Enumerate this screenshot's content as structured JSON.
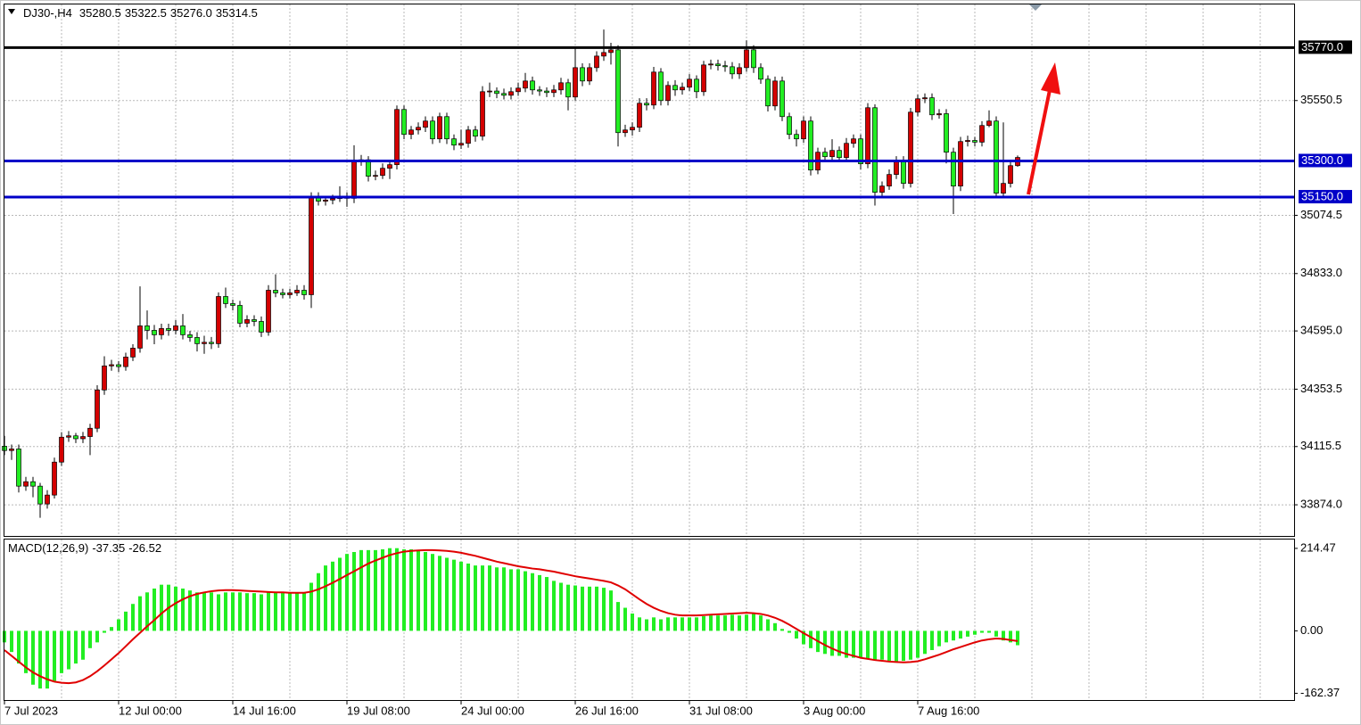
{
  "chart_data": [
    {
      "type": "candlestick",
      "header": {
        "symbol": "DJ30-,H4",
        "values": [
          "35280.5",
          "35322.5",
          "35276.0",
          "35314.5"
        ]
      },
      "categories": [
        "7 Jul 2023",
        null,
        null,
        null,
        null,
        null,
        null,
        null,
        null,
        null,
        null,
        null,
        null,
        null,
        null,
        null,
        "12 Jul 00:00",
        null,
        null,
        null,
        null,
        null,
        null,
        null,
        null,
        null,
        null,
        null,
        null,
        null,
        null,
        null,
        "14 Jul 16:00",
        null,
        null,
        null,
        null,
        null,
        null,
        null,
        null,
        null,
        null,
        null,
        null,
        null,
        null,
        null,
        "19 Jul 08:00",
        null,
        null,
        null,
        null,
        null,
        null,
        null,
        null,
        null,
        null,
        null,
        null,
        null,
        null,
        null,
        "24 Jul 00:00",
        null,
        null,
        null,
        null,
        null,
        null,
        null,
        null,
        null,
        null,
        null,
        null,
        null,
        null,
        null,
        "26 Jul 16:00",
        null,
        null,
        null,
        null,
        null,
        null,
        null,
        null,
        null,
        null,
        null,
        null,
        null,
        null,
        null,
        "31 Jul 08:00",
        null,
        null,
        null,
        null,
        null,
        null,
        null,
        null,
        null,
        null,
        null,
        null,
        null,
        null,
        null,
        "3 Aug 00:00",
        null,
        null,
        null,
        null,
        null,
        null,
        null,
        null,
        null,
        null,
        null,
        null,
        null,
        null,
        null,
        "7 Aug 16:00",
        null,
        null,
        null,
        null,
        null,
        null,
        null,
        null,
        null,
        null,
        null,
        null,
        null,
        null
      ],
      "open": [
        34117.0,
        34099.0,
        34105.5,
        33951.3,
        33969.8,
        33951.3,
        33877.5,
        33914.4,
        34051.0,
        34154.4,
        34160.0,
        34148.0,
        34157.0,
        34191.4,
        34350.2,
        34450.0,
        34455.0,
        34447.0,
        34486.8,
        34523.7,
        34616.1,
        34597.6,
        34579.1,
        34605.0,
        34597.6,
        34616.1,
        34579.1,
        34568.0,
        34542.2,
        34548.0,
        34542.2,
        34737.9,
        34708.4,
        34701.0,
        34627.1,
        34641.9,
        34634.5,
        34590.2,
        34763.8,
        34752.7,
        34745.3,
        34752.7,
        34763.8,
        34745.3,
        35151.5,
        35133.1,
        35138.0,
        35144.2,
        35151.5,
        35145.0,
        35299.3,
        35305.0,
        35236.5,
        35240.0,
        35269.7,
        35284.5,
        35513.5,
        35410.1,
        35428.5,
        35439.6,
        35465.5,
        35391.6,
        35483.9,
        35391.6,
        35365.7,
        35373.1,
        35428.5,
        35402.7,
        35587.3,
        35590.0,
        35579.9,
        35572.5,
        35587.3,
        35602.1,
        35631.6,
        35594.7,
        35590.0,
        35583.6,
        35594.7,
        35624.2,
        35565.2,
        35687.0,
        35631.6,
        35687.0,
        35735.0,
        35749.8,
        35760.9,
        35417.4,
        35428.5,
        35439.6,
        35539.3,
        35531.9,
        35668.6,
        35550.4,
        35613.2,
        35594.7,
        35605.8,
        35639.0,
        35587.3,
        35698.1,
        35702.0,
        35695.0,
        35690.7,
        35661.2,
        35687.0,
        35760.9,
        35687.0,
        35639.0,
        35528.2,
        35631.6,
        35483.9,
        35410.1,
        35391.6,
        35465.5,
        35262.3,
        35336.2,
        35317.7,
        35343.6,
        35314.0,
        35373.1,
        35391.6,
        35288.2,
        35520.8,
        35170.0,
        35195.9,
        35243.9,
        35299.3,
        35206.9,
        35502.4,
        35557.8,
        35562.0,
        35491.3,
        35496.0,
        35336.2,
        35195.9,
        35380.5,
        35385.0,
        35378.0,
        35447.0,
        35465.5,
        35166.3,
        35206.9,
        35280.5
      ],
      "high": [
        34160,
        34124,
        34124,
        33990,
        33990,
        33965,
        33935,
        34070,
        34175,
        34180,
        34172,
        34176,
        34210,
        34370,
        34490,
        34475,
        34470,
        34505,
        34540,
        34780,
        34680,
        34620,
        34625,
        34625,
        34640,
        34665,
        34595,
        34590,
        34575,
        34570,
        34755,
        34775,
        34725,
        34720,
        34660,
        34660,
        34655,
        34785,
        34830,
        34770,
        34770,
        34785,
        34785,
        35170,
        35170,
        35155,
        35160,
        35195,
        35170,
        35365,
        35325,
        35320,
        35260,
        35290,
        35300,
        35530,
        35530,
        35445,
        35460,
        35485,
        35485,
        35500,
        35500,
        35410,
        35430,
        35445,
        35445,
        35610,
        35625,
        35605,
        35600,
        35605,
        35625,
        35665,
        35650,
        35610,
        35605,
        35615,
        35645,
        35640,
        35775,
        35705,
        35705,
        35755,
        35845,
        35790,
        35780,
        35450,
        35460,
        35560,
        35560,
        35690,
        35685,
        35630,
        35635,
        35625,
        35660,
        35655,
        35715,
        35720,
        35720,
        35715,
        35710,
        35705,
        35800,
        35780,
        35705,
        35655,
        35650,
        35650,
        35500,
        35430,
        35485,
        35485,
        35355,
        35355,
        35390,
        35360,
        35395,
        35410,
        35410,
        35540,
        35535,
        35215,
        35265,
        35320,
        35320,
        35520,
        35575,
        35580,
        35580,
        35515,
        35515,
        35355,
        35400,
        35405,
        35400,
        35465,
        35510,
        35485,
        35460,
        35300,
        35322.5
      ],
      "low": [
        34080,
        34060,
        33925,
        33932,
        33905,
        33820,
        33858,
        33900,
        34035,
        34135,
        34130,
        34130,
        34080,
        34175,
        34330,
        34430,
        34425,
        34430,
        34470,
        34505,
        34560,
        34540,
        34560,
        34575,
        34580,
        34560,
        34550,
        34510,
        34500,
        34520,
        34525,
        34690,
        34680,
        34610,
        34610,
        34615,
        34570,
        34575,
        34735,
        34730,
        34730,
        34740,
        34725,
        34690,
        35115,
        35115,
        35120,
        35130,
        35110,
        35125,
        35280,
        35215,
        35220,
        35225,
        35225,
        35265,
        35390,
        35390,
        35410,
        35420,
        35370,
        35375,
        35370,
        35345,
        35350,
        35355,
        35380,
        35385,
        35565,
        35560,
        35555,
        35555,
        35570,
        35585,
        35575,
        35570,
        35565,
        35565,
        35575,
        35510,
        35550,
        35610,
        35615,
        35670,
        35715,
        35700,
        35360,
        35400,
        35405,
        35420,
        35510,
        35515,
        35530,
        35530,
        35570,
        35575,
        35590,
        35560,
        35570,
        35680,
        35675,
        35670,
        35640,
        35640,
        35670,
        35665,
        35620,
        35505,
        35510,
        35465,
        35390,
        35360,
        35375,
        35240,
        35245,
        35295,
        35300,
        35295,
        35300,
        35355,
        35265,
        35270,
        35115,
        35150,
        35180,
        35225,
        35185,
        35190,
        35485,
        35540,
        35470,
        35475,
        35290,
        35080,
        35175,
        35360,
        35360,
        35360,
        35440,
        35150,
        35150,
        35190,
        35276
      ],
      "close": [
        34099.0,
        34105.5,
        33951.3,
        33969.8,
        33951.3,
        33877.5,
        33914.4,
        34051.0,
        34154.4,
        34160.0,
        34148.0,
        34157.0,
        34191.4,
        34350.2,
        34450.0,
        34455.0,
        34447.0,
        34486.8,
        34523.7,
        34616.1,
        34597.6,
        34579.1,
        34605.0,
        34597.6,
        34616.1,
        34579.1,
        34568.0,
        34542.2,
        34548.0,
        34542.2,
        34737.9,
        34708.4,
        34701.0,
        34627.1,
        34641.9,
        34634.5,
        34590.2,
        34763.8,
        34752.7,
        34745.3,
        34752.7,
        34763.8,
        34745.3,
        35151.5,
        35133.1,
        35138.0,
        35144.2,
        35151.5,
        35145.0,
        35299.3,
        35305.0,
        35236.5,
        35240.0,
        35269.7,
        35284.5,
        35513.5,
        35410.1,
        35428.5,
        35439.6,
        35465.5,
        35391.6,
        35483.9,
        35391.6,
        35365.7,
        35373.1,
        35428.5,
        35402.7,
        35587.3,
        35590.0,
        35579.9,
        35572.5,
        35587.3,
        35602.1,
        35631.6,
        35594.7,
        35590.0,
        35583.6,
        35594.7,
        35624.2,
        35565.2,
        35687.0,
        35631.6,
        35687.0,
        35735.0,
        35749.8,
        35760.9,
        35417.4,
        35428.5,
        35439.6,
        35539.3,
        35531.9,
        35668.6,
        35550.4,
        35613.2,
        35594.7,
        35605.8,
        35639.0,
        35587.3,
        35698.1,
        35702.0,
        35695.0,
        35690.7,
        35661.2,
        35687.0,
        35760.9,
        35687.0,
        35639.0,
        35528.2,
        35631.6,
        35483.9,
        35410.1,
        35391.6,
        35465.5,
        35262.3,
        35336.2,
        35317.7,
        35343.6,
        35314.0,
        35373.1,
        35391.6,
        35288.2,
        35520.8,
        35170.0,
        35195.9,
        35243.9,
        35299.3,
        35206.9,
        35502.4,
        35557.8,
        35562.0,
        35491.3,
        35496.0,
        35336.2,
        35195.9,
        35380.5,
        35385.0,
        35378.0,
        35447.0,
        35465.5,
        35166.3,
        35206.9,
        35280.5,
        35314.5
      ],
      "up_color": "#d40000",
      "down_color": "#22ee22",
      "ylim": [
        33744.8,
        35949.0
      ],
      "yticks": [
        {
          "value": 33874.0,
          "label": "33874.0"
        },
        34115.5,
        34353.5,
        {
          "value": 34595.0,
          "label": "34595.0"
        },
        {
          "value": 34833.0,
          "label": "34833.0"
        },
        35074.5,
        35550.5
      ],
      "grid": true,
      "hlines": [
        {
          "value": 35770.0,
          "label": "35770.0",
          "color": "#000000"
        },
        {
          "value": 35300.0,
          "label": "35300.0",
          "color": "#0000c8"
        },
        {
          "value": 35150.0,
          "label": "35150.0",
          "color": "#0000c8"
        }
      ]
    },
    {
      "type": "macd",
      "title": "MACD(12,26,9)",
      "histogram": [
        -30,
        -55,
        -85,
        -110,
        -140,
        -150,
        -150,
        -130,
        -110,
        -100,
        -85,
        -75,
        -45,
        -30,
        -5,
        10,
        30,
        50,
        70,
        90,
        100,
        110,
        120,
        120,
        115,
        110,
        105,
        100,
        100,
        100,
        95,
        100,
        100,
        100,
        98,
        98,
        95,
        100,
        100,
        100,
        98,
        98,
        100,
        125,
        150,
        170,
        180,
        190,
        200,
        205,
        210,
        210,
        210,
        212,
        215,
        215,
        212,
        212,
        210,
        205,
        200,
        195,
        190,
        185,
        180,
        175,
        170,
        170,
        170,
        165,
        165,
        160,
        160,
        155,
        150,
        145,
        140,
        130,
        125,
        120,
        118,
        115,
        115,
        115,
        112,
        105,
        75,
        60,
        45,
        35,
        30,
        35,
        30,
        35,
        35,
        35,
        35,
        35,
        38,
        40,
        40,
        40,
        42,
        40,
        42,
        45,
        40,
        30,
        20,
        5,
        -5,
        -20,
        -35,
        -45,
        -55,
        -60,
        -65,
        -65,
        -70,
        -70,
        -70,
        -72,
        -75,
        -75,
        -78,
        -80,
        -78,
        -75,
        -70,
        -60,
        -50,
        -40,
        -30,
        -25,
        -20,
        -15,
        -10,
        -5,
        -5,
        -15,
        -25,
        -30,
        -37.35
      ],
      "signal": [
        -50,
        -65,
        -80,
        -95,
        -108,
        -118,
        -126,
        -132,
        -135,
        -136,
        -134,
        -128,
        -118,
        -105,
        -90,
        -74,
        -58,
        -40,
        -22,
        -5,
        12,
        28,
        45,
        60,
        72,
        82,
        90,
        96,
        100,
        103,
        105,
        106,
        106,
        105,
        104,
        103,
        102,
        101,
        100,
        100,
        99,
        99,
        99,
        102,
        108,
        116,
        125,
        135,
        145,
        155,
        165,
        175,
        183,
        190,
        197,
        202,
        206,
        208,
        209,
        210,
        210,
        209,
        208,
        206,
        203,
        199,
        195,
        190,
        185,
        180,
        176,
        172,
        168,
        165,
        162,
        160,
        157,
        154,
        150,
        146,
        142,
        139,
        136,
        133,
        130,
        126,
        118,
        108,
        95,
        82,
        70,
        60,
        52,
        46,
        42,
        40,
        40,
        40,
        41,
        42,
        43,
        44,
        45,
        46,
        47,
        46,
        44,
        40,
        34,
        26,
        16,
        5,
        -6,
        -16,
        -27,
        -37,
        -46,
        -54,
        -60,
        -65,
        -70,
        -73,
        -76,
        -78,
        -80,
        -81,
        -82,
        -81,
        -79,
        -74,
        -68,
        -62,
        -55,
        -48,
        -42,
        -36,
        -30,
        -25,
        -22,
        -20,
        -21,
        -24,
        -26.52
      ],
      "histogram_color": "#22ee22",
      "signal_color": "#e00000",
      "ylim": [
        -179.9,
        237.5
      ],
      "yticks": [
        214.47,
        {
          "value": 0,
          "label": "0.00"
        },
        -162.37
      ]
    }
  ]
}
